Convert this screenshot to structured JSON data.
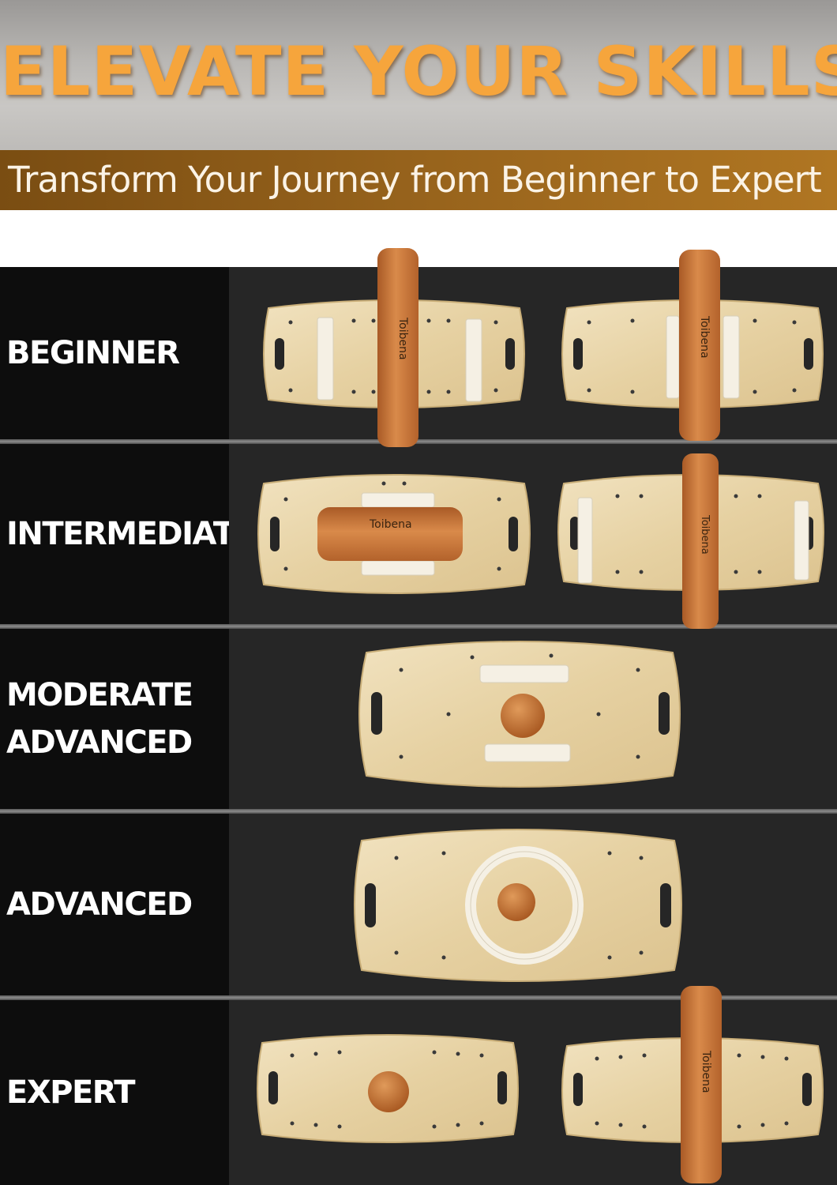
{
  "header": {
    "title": "ELEVATE YOUR SKILLS",
    "subtitle": "Transform Your Journey from Beginner to Expert"
  },
  "brand": "Toibena",
  "colors": {
    "title_orange": "#f6a53c",
    "subtitle_band": "#97631c",
    "label_panel": "#0d0d0d",
    "image_panel": "#262626",
    "plywood": "#e9d6ac",
    "cork": "#c8763a"
  },
  "levels": [
    {
      "label": "BEGINNER",
      "images": [
        "balance-board-with-cork-roller",
        "balance-board-with-cork-roller"
      ]
    },
    {
      "label": "INTERMEDIATE",
      "images": [
        "balance-board-with-cork-roller",
        "balance-board-with-cork-roller"
      ]
    },
    {
      "label": "MODERATE\nADVANCED",
      "images": [
        "balance-board-with-cork-ball"
      ]
    },
    {
      "label": "ADVANCED",
      "images": [
        "balance-board-with-ring-and-cork-ball"
      ]
    },
    {
      "label": "EXPERT",
      "images": [
        "balance-board-with-cork-ball",
        "balance-board-with-cork-roller"
      ]
    }
  ]
}
